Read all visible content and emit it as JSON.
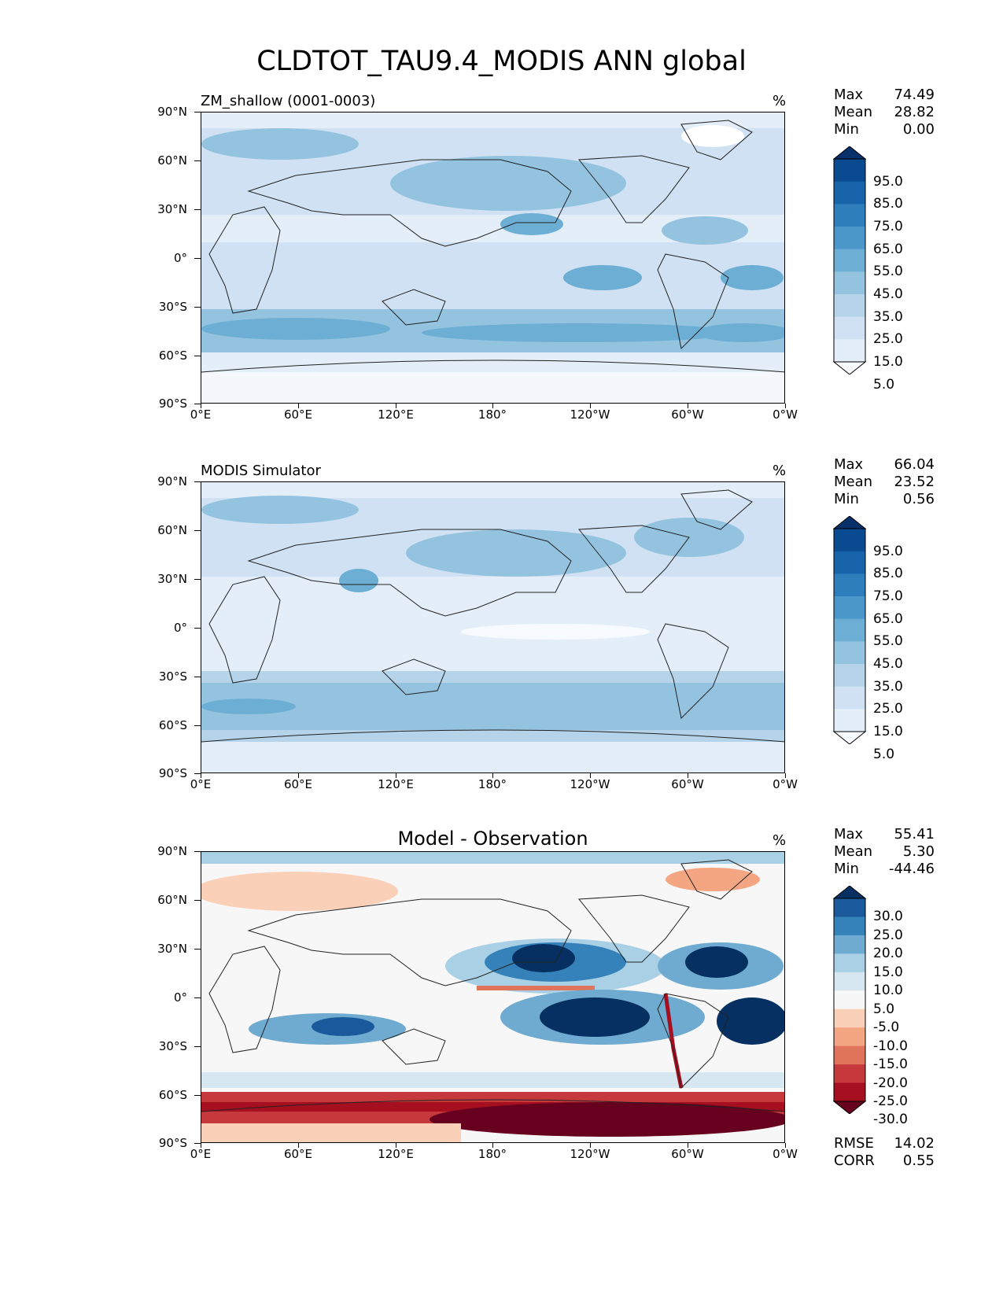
{
  "figure_title": "CLDTOT_TAU9.4_MODIS ANN global",
  "lat_ticks": [
    "90°N",
    "60°N",
    "30°N",
    "0°",
    "30°S",
    "60°S",
    "90°S"
  ],
  "lon_ticks": [
    "0°E",
    "60°E",
    "120°E",
    "180°",
    "120°W",
    "60°W",
    "0°W"
  ],
  "panels": [
    {
      "title": "ZM_shallow (0001-0003)",
      "title_position": "left",
      "units": "%",
      "stats": {
        "max_label": "Max",
        "max": "74.49",
        "mean_label": "Mean",
        "mean": "28.82",
        "min_label": "Min",
        "min": "0.00"
      },
      "colormap": "Blues",
      "colorbar_ticks": [
        "95.0",
        "85.0",
        "75.0",
        "65.0",
        "55.0",
        "45.0",
        "35.0",
        "25.0",
        "15.0",
        "5.0"
      ]
    },
    {
      "title": "MODIS Simulator",
      "title_position": "left",
      "units": "%",
      "stats": {
        "max_label": "Max",
        "max": "66.04",
        "mean_label": "Mean",
        "mean": "23.52",
        "min_label": "Min",
        "min": "0.56"
      },
      "colormap": "Blues",
      "colorbar_ticks": [
        "95.0",
        "85.0",
        "75.0",
        "65.0",
        "55.0",
        "45.0",
        "35.0",
        "25.0",
        "15.0",
        "5.0"
      ]
    },
    {
      "title": "Model - Observation",
      "title_position": "center",
      "units": "%",
      "stats": {
        "max_label": "Max",
        "max": "55.41",
        "mean_label": "Mean",
        "mean": "5.30",
        "min_label": "Min",
        "min": "-44.46"
      },
      "colormap": "RdBu",
      "colorbar_ticks": [
        "30.0",
        "25.0",
        "20.0",
        "15.0",
        "10.0",
        "5.0",
        "-5.0",
        "-10.0",
        "-15.0",
        "-20.0",
        "-25.0",
        "-30.0"
      ],
      "rmse_label": "RMSE",
      "rmse": "14.02",
      "corr_label": "CORR",
      "corr": "0.55"
    }
  ],
  "colors": {
    "blues": [
      "#f7fbff",
      "#e3eef9",
      "#cfe1f2",
      "#b5d4e9",
      "#93c3df",
      "#6daed5",
      "#4b97c9",
      "#2f7ebc",
      "#1864aa",
      "#0a4a90",
      "#08306b"
    ],
    "rdbu": [
      "#67001f",
      "#a50f20",
      "#c5383c",
      "#e0745a",
      "#f4a582",
      "#fbd0b9",
      "#f7f7f7",
      "#d6e7f1",
      "#a9d0e5",
      "#6fabd0",
      "#3581b9",
      "#1a5a9c",
      "#053061"
    ]
  }
}
